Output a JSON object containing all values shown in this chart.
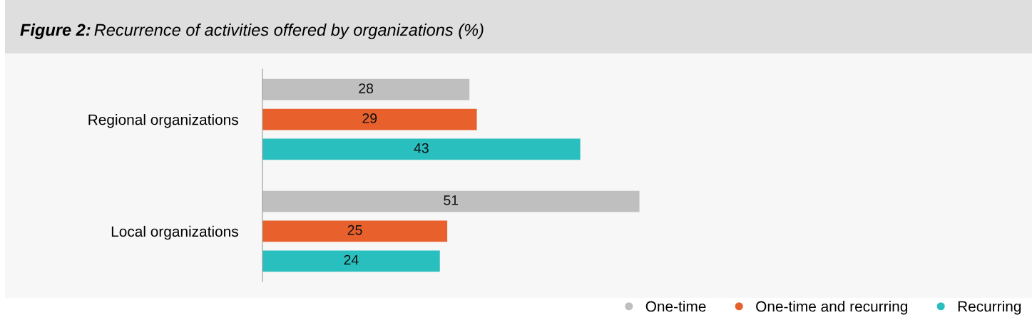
{
  "chart_data": {
    "type": "bar",
    "orientation": "horizontal",
    "title": "Figure 2: Recurrence of activities offered by organizations (%)",
    "categories": [
      "Regional organizations",
      "Local organizations"
    ],
    "series": [
      {
        "name": "One-time",
        "color": "#bfbfbf",
        "values": [
          28,
          51
        ]
      },
      {
        "name": "One-time and recurring",
        "color": "#e8602c",
        "values": [
          29,
          25
        ]
      },
      {
        "name": "Recurring",
        "color": "#2abfbf",
        "values": [
          43,
          24
        ]
      }
    ],
    "data_labels": true,
    "legend": "bottom right",
    "marker": "circle",
    "grid": false
  }
}
